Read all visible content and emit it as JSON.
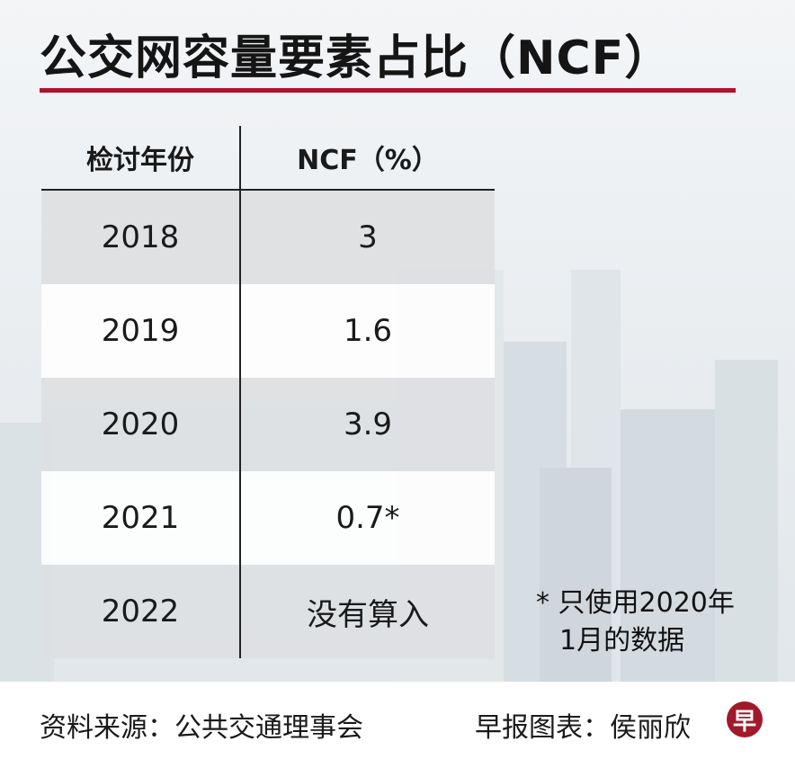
{
  "title": "公交网容量要素占比（NCF）",
  "chart_data": {
    "type": "table",
    "columns": [
      "检讨年份",
      "NCF（%）"
    ],
    "rows": [
      {
        "year": "2018",
        "ncf": "3"
      },
      {
        "year": "2019",
        "ncf": "1.6"
      },
      {
        "year": "2020",
        "ncf": "3.9"
      },
      {
        "year": "2021",
        "ncf": "0.7*"
      },
      {
        "year": "2022",
        "ncf": "没有算入"
      }
    ],
    "footnote_line1": "* 只使用2020年",
    "footnote_line2": "1月的数据"
  },
  "footer": {
    "source": "资料来源：公共交通理事会",
    "credit": "早报图表：侯丽欣",
    "logo_text": "早"
  },
  "colors": {
    "accent_rule": "#b3102e",
    "logo": "#a01a2c",
    "row_white": "#ffffff",
    "row_grey": "#dddfe2"
  }
}
